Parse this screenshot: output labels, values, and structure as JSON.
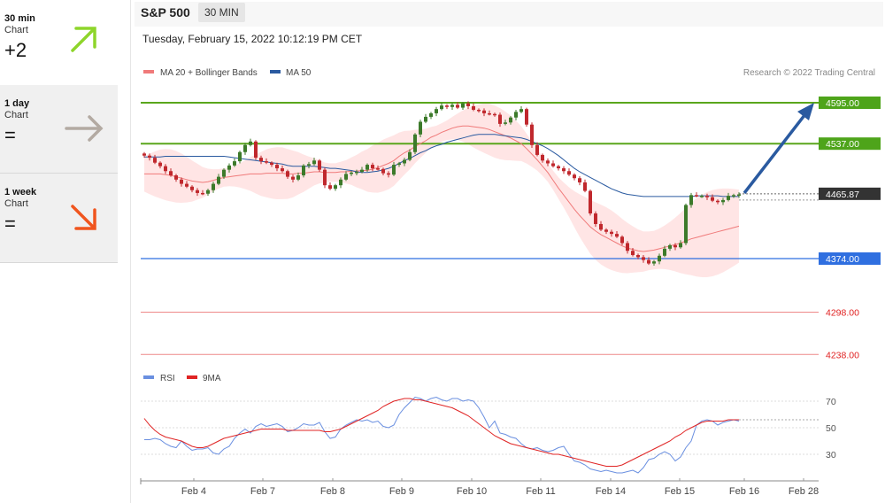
{
  "header": {
    "title": "S&P 500",
    "interval": "30 MIN"
  },
  "datetime": "Tuesday, February 15, 2022 10:12:19 PM CET",
  "sidebar": [
    {
      "period": "30 min",
      "sub": "Chart",
      "score": "+2",
      "trend": "up",
      "color": "#8ed52b"
    },
    {
      "period": "1 day",
      "sub": "Chart",
      "score": "=",
      "trend": "flat",
      "color": "#b3aaa2"
    },
    {
      "period": "1 week",
      "sub": "Chart",
      "score": "=",
      "trend": "down",
      "color": "#f0551e"
    }
  ],
  "legend": {
    "ma20": "MA 20 + Bollinger Bands",
    "ma50": "MA 50",
    "credit": "Research © 2022 Trading Central"
  },
  "rsi_legend": {
    "rsi": "RSI",
    "ma": "9MA"
  },
  "colors": {
    "ma20": "#f07a7a",
    "ma50": "#2a5aa0",
    "band": "#ffdcdc",
    "resistance": "#5aa61c",
    "pivot": "#2f6fe0",
    "support": "#e04848",
    "up": "#3c7a2a",
    "down": "#c0282d",
    "rsi": "#6a8fe0",
    "rsi_ma": "#e02424",
    "current": "#333333"
  },
  "chart_data": [
    {
      "type": "line",
      "series_type": "candlestick",
      "x_ticks": [
        "Feb 4",
        "Feb 7",
        "Feb 8",
        "Feb 9",
        "Feb 10",
        "Feb 11",
        "Feb 14",
        "Feb 15",
        "Feb 16",
        "Feb 28"
      ],
      "levels": [
        {
          "value": 4595.0,
          "label": "4595.00",
          "kind": "resistance"
        },
        {
          "value": 4537.0,
          "label": "4537.00",
          "kind": "resistance"
        },
        {
          "value": 4465.87,
          "label": "4465.87",
          "kind": "current"
        },
        {
          "value": 4374.0,
          "label": "4374.00",
          "kind": "pivot"
        },
        {
          "value": 4298.0,
          "label": "4298.00",
          "kind": "support"
        },
        {
          "value": 4238.0,
          "label": "4238.00",
          "kind": "support"
        }
      ],
      "close": [
        4520,
        4517,
        4510,
        4505,
        4498,
        4492,
        4486,
        4480,
        4476,
        4471,
        4467,
        4466,
        4471,
        4480,
        4490,
        4500,
        4506,
        4512,
        4525,
        4535,
        4540,
        4517,
        4512,
        4510,
        4507,
        4502,
        4498,
        4490,
        4486,
        4492,
        4506,
        4508,
        4513,
        4500,
        4478,
        4473,
        4478,
        4486,
        4494,
        4496,
        4497,
        4500,
        4507,
        4502,
        4501,
        4495,
        4493,
        4507,
        4509,
        4514,
        4525,
        4550,
        4568,
        4575,
        4580,
        4586,
        4591,
        4589,
        4592,
        4588,
        4594,
        4590,
        4585,
        4584,
        4580,
        4579,
        4578,
        4565,
        4567,
        4574,
        4582,
        4586,
        4564,
        4535,
        4521,
        4513,
        4509,
        4505,
        4502,
        4498,
        4493,
        4488,
        4482,
        4470,
        4438,
        4423,
        4415,
        4412,
        4409,
        4405,
        4396,
        4385,
        4379,
        4376,
        4372,
        4367,
        4370,
        4378,
        4388,
        4393,
        4390,
        4396,
        4450,
        4464,
        4463,
        4463,
        4461,
        4456,
        4454,
        4457,
        4463,
        4464,
        4465
      ],
      "ma20": [
        4494,
        4494,
        4494,
        4494,
        4493,
        4492,
        4490,
        4488,
        4486,
        4484,
        4483,
        4482,
        4483,
        4485,
        4487,
        4489,
        4490,
        4491,
        4492,
        4493,
        4494,
        4494,
        4494,
        4495,
        4495,
        4495,
        4495,
        4494,
        4494,
        4495,
        4495,
        4496,
        4497,
        4497,
        4496,
        4496,
        4496,
        4497,
        4497,
        4498,
        4498,
        4499,
        4499,
        4501,
        4503,
        4506,
        4509,
        4513,
        4519,
        4524,
        4528,
        4533,
        4537,
        4541,
        4546,
        4549,
        4553,
        4556,
        4559,
        4561,
        4562,
        4562,
        4561,
        4560,
        4559,
        4557,
        4554,
        4551,
        4548,
        4545,
        4541,
        4537,
        4530,
        4522,
        4514,
        4505,
        4496,
        4485,
        4474,
        4464,
        4454,
        4444,
        4435,
        4427,
        4419,
        4413,
        4408,
        4404,
        4400,
        4396,
        4392,
        4389,
        4387,
        4385,
        4384,
        4385,
        4386,
        4388,
        4390,
        4392,
        4394,
        4396,
        4399,
        4402,
        4404,
        4406,
        4408,
        4410,
        4412,
        4414,
        4416,
        4418,
        4420
      ],
      "ma50": [
        4518,
        4518,
        4518,
        4518,
        4519,
        4519,
        4519,
        4519,
        4519,
        4519,
        4519,
        4519,
        4519,
        4519,
        4519,
        4519,
        4518,
        4517,
        4516,
        4515,
        4514,
        4513,
        4512,
        4511,
        4510,
        4509,
        4508,
        4506,
        4505,
        4505,
        4505,
        4505,
        4505,
        4504,
        4503,
        4502,
        4502,
        4501,
        4500,
        4499,
        4497,
        4496,
        4496,
        4497,
        4498,
        4500,
        4502,
        4505,
        4509,
        4513,
        4516,
        4520,
        4524,
        4527,
        4531,
        4534,
        4536,
        4539,
        4541,
        4543,
        4545,
        4547,
        4549,
        4550,
        4550,
        4550,
        4550,
        4549,
        4548,
        4547,
        4546,
        4545,
        4543,
        4540,
        4537,
        4534,
        4530,
        4525,
        4520,
        4514,
        4508,
        4502,
        4497,
        4493,
        4489,
        4485,
        4481,
        4477,
        4473,
        4470,
        4467,
        4465,
        4464,
        4463,
        4462,
        4462,
        4462,
        4462,
        4462,
        4462,
        4462,
        4462,
        4462,
        4462,
        4463,
        4463,
        4463,
        4463,
        4463,
        4462,
        4462,
        4462,
        4462
      ],
      "current": 4465.87
    },
    {
      "type": "line",
      "y_ticks": [
        70,
        50,
        30
      ],
      "rsi": [
        41,
        41,
        42,
        41,
        38,
        36,
        35,
        40,
        36,
        33,
        34,
        34,
        35,
        31,
        30,
        34,
        36,
        42,
        46,
        49,
        46,
        51,
        53,
        51,
        52,
        53,
        51,
        47,
        48,
        50,
        53,
        52,
        52,
        54,
        47,
        42,
        43,
        49,
        52,
        54,
        56,
        55,
        56,
        54,
        55,
        51,
        50,
        52,
        60,
        65,
        69,
        73,
        72,
        70,
        72,
        73,
        71,
        70,
        72,
        72,
        70,
        71,
        70,
        65,
        58,
        50,
        55,
        46,
        45,
        43,
        42,
        38,
        35,
        34,
        35,
        33,
        32,
        33,
        35,
        36,
        30,
        25,
        24,
        22,
        19,
        18,
        17,
        18,
        17,
        16,
        16,
        17,
        18,
        16,
        20,
        26,
        27,
        30,
        32,
        30,
        25,
        28,
        35,
        40,
        52,
        55,
        56,
        55,
        52,
        54,
        55,
        56,
        55
      ],
      "ma9": [
        57,
        52,
        48,
        45,
        43,
        42,
        41,
        40,
        38,
        36,
        35,
        35,
        36,
        38,
        40,
        42,
        43,
        44,
        45,
        46,
        47,
        48,
        49,
        49,
        49,
        49,
        49,
        48,
        48,
        48,
        48,
        48,
        48,
        48,
        47,
        47,
        48,
        49,
        51,
        53,
        55,
        57,
        59,
        61,
        63,
        66,
        68,
        70,
        71,
        72,
        72,
        71,
        71,
        70,
        69,
        68,
        67,
        66,
        65,
        63,
        61,
        59,
        56,
        53,
        50,
        47,
        44,
        42,
        40,
        38,
        37,
        36,
        35,
        34,
        33,
        32,
        31,
        30,
        30,
        29,
        28,
        27,
        26,
        25,
        24,
        23,
        22,
        21,
        21,
        21,
        22,
        24,
        26,
        28,
        30,
        32,
        34,
        36,
        38,
        40,
        43,
        45,
        48,
        50,
        52,
        54,
        55,
        55,
        55,
        55,
        56,
        56,
        56
      ]
    }
  ]
}
